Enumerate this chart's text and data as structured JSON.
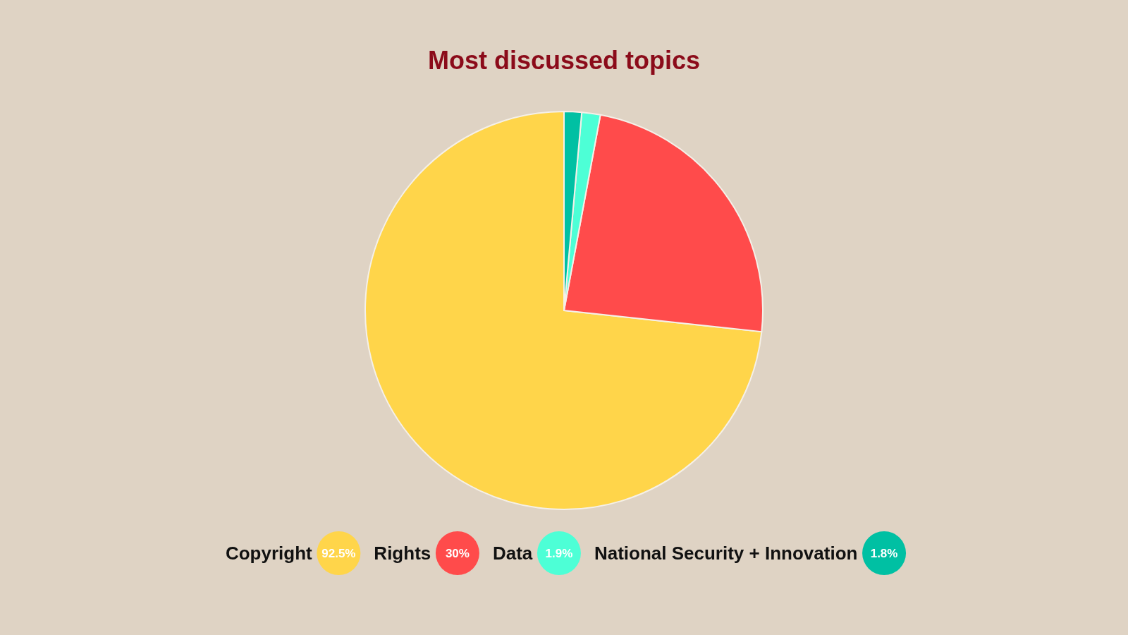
{
  "chart_data": {
    "type": "pie",
    "title": "Most discussed topics",
    "categories": [
      "Copyright",
      "Rights",
      "Data",
      "National Security + Innovation"
    ],
    "values": [
      92.5,
      30,
      1.9,
      1.8
    ],
    "colors": [
      "#ffd54a",
      "#ff4b4b",
      "#4dffd6",
      "#00c0a3"
    ],
    "value_labels": [
      "92.5%",
      "30%",
      "1.9%",
      "1.8%"
    ],
    "legend": "bottom"
  }
}
